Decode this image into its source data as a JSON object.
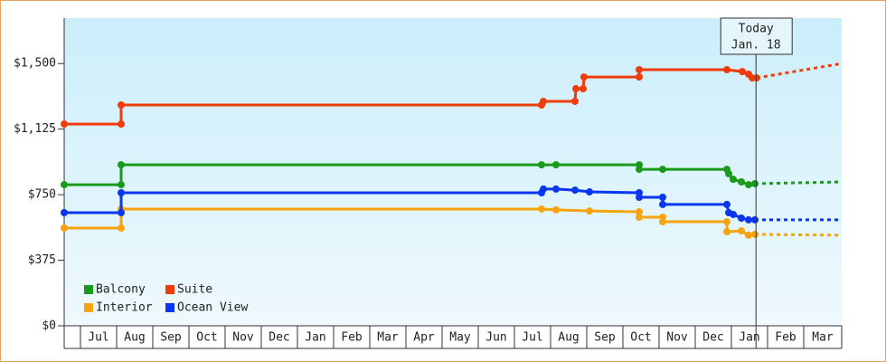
{
  "chart_data": {
    "type": "line",
    "xlim": [
      -0.45,
      21.05
    ],
    "ylim": [
      0,
      1760
    ],
    "yticks": [
      {
        "value": 0,
        "label": "$0"
      },
      {
        "value": 375,
        "label": "$375"
      },
      {
        "value": 750,
        "label": "$750"
      },
      {
        "value": 1125,
        "label": "$1,125"
      },
      {
        "value": 1500,
        "label": "$1,500"
      }
    ],
    "xticks": [
      {
        "value": 0,
        "label": "Jul"
      },
      {
        "value": 1,
        "label": "Aug"
      },
      {
        "value": 2,
        "label": "Sep"
      },
      {
        "value": 3,
        "label": "Oct"
      },
      {
        "value": 4,
        "label": "Nov"
      },
      {
        "value": 5,
        "label": "Dec"
      },
      {
        "value": 6,
        "label": "Jan"
      },
      {
        "value": 7,
        "label": "Feb"
      },
      {
        "value": 8,
        "label": "Mar"
      },
      {
        "value": 9,
        "label": "Apr"
      },
      {
        "value": 10,
        "label": "May"
      },
      {
        "value": 11,
        "label": "Jun"
      },
      {
        "value": 12,
        "label": "Jul"
      },
      {
        "value": 13,
        "label": "Aug"
      },
      {
        "value": 14,
        "label": "Sep"
      },
      {
        "value": 15,
        "label": "Oct"
      },
      {
        "value": 16,
        "label": "Nov"
      },
      {
        "value": 17,
        "label": "Dec"
      },
      {
        "value": 18,
        "label": "Jan"
      },
      {
        "value": 19,
        "label": "Feb"
      },
      {
        "value": 20,
        "label": "Mar"
      }
    ],
    "today": {
      "x": 18.68,
      "lines": [
        "Today",
        "Jan. 18"
      ]
    },
    "series": [
      {
        "name": "Balcony",
        "color": "#1a9a1a",
        "x": [
          -0.45,
          1.125,
          1.125,
          12.75,
          13.15,
          15.45,
          15.45,
          16.1,
          17.875,
          17.925,
          18.05,
          18.275,
          18.475,
          18.65
        ],
        "values": [
          807,
          807,
          921,
          921,
          921,
          921,
          895,
          895,
          895,
          870,
          838,
          823,
          807,
          813
        ],
        "forecast": {
          "x": [
            18.65,
            21.05
          ],
          "values": [
            813,
            823
          ]
        }
      },
      {
        "name": "Suite",
        "color": "#f03c0a",
        "x": [
          -0.45,
          1.125,
          1.125,
          12.75,
          12.8,
          13.675,
          13.7,
          13.9,
          13.925,
          15.45,
          15.45,
          17.875,
          18.3,
          18.475,
          18.575,
          18.7
        ],
        "values": [
          1154,
          1154,
          1263,
          1263,
          1284,
          1284,
          1356,
          1356,
          1423,
          1423,
          1465,
          1465,
          1454,
          1439,
          1418,
          1418
        ],
        "forecast": {
          "x": [
            18.7,
            21.05
          ],
          "values": [
            1418,
            1500
          ]
        }
      },
      {
        "name": "Interior",
        "color": "#f5a30f",
        "x": [
          -0.45,
          1.125,
          1.125,
          12.75,
          13.15,
          14.075,
          15.45,
          15.45,
          16.1,
          16.1,
          17.875,
          17.875,
          18.275,
          18.475,
          18.65
        ],
        "values": [
          559,
          559,
          668,
          668,
          663,
          657,
          652,
          621,
          621,
          595,
          595,
          538,
          543,
          518,
          523
        ],
        "forecast": {
          "x": [
            18.65,
            21.05
          ],
          "values": [
            523,
            518
          ]
        }
      },
      {
        "name": "Ocean View",
        "color": "#0a36f0",
        "x": [
          -0.45,
          1.125,
          1.125,
          12.75,
          12.8,
          13.15,
          13.675,
          14.075,
          15.45,
          15.45,
          16.1,
          16.1,
          17.875,
          17.925,
          18.05,
          18.275,
          18.475,
          18.65
        ],
        "values": [
          647,
          647,
          761,
          761,
          782,
          782,
          776,
          766,
          761,
          735,
          735,
          694,
          694,
          647,
          637,
          616,
          606,
          606
        ],
        "forecast": {
          "x": [
            18.65,
            21.05
          ],
          "values": [
            606,
            606
          ]
        }
      }
    ]
  }
}
